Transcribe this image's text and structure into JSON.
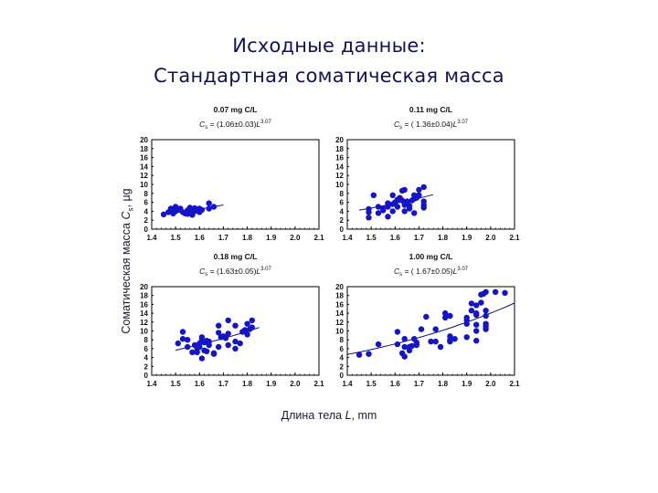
{
  "title_line1": "Исходные данные:",
  "title_line2": "Стандартная соматическая масса",
  "ylabel": "Соматическая масса Cs, µg",
  "ylabel_parts": {
    "prefix": "Соматическая масса ",
    "var": "C",
    "sub": "s",
    "suffix": ", µg"
  },
  "xlabel_parts": {
    "prefix": "Длина тела ",
    "var": "L",
    "suffix": ", mm"
  },
  "colors": {
    "marker": "#1414c8",
    "fit_line": "#10106e",
    "title": "#12125a",
    "axis": "#000000"
  },
  "chart_data": [
    {
      "type": "scatter",
      "title": "0.07 mg C/L",
      "equation": "Cs = (1.06±0.03)L^3.07",
      "eq_coef": "(1.06±0.03)",
      "exponent": "3.07",
      "xlabel": "Длина тела L, mm",
      "ylabel": "Соматическая масса Cs, µg",
      "xlim": [
        1.4,
        2.1
      ],
      "ylim": [
        0,
        20
      ],
      "xticks": [
        "1.4",
        "1.5",
        "1.6",
        "1.7",
        "1.8",
        "1.9",
        "2.0",
        "2.1"
      ],
      "yticks": [
        "0",
        "2",
        "4",
        "6",
        "8",
        "10",
        "12",
        "14",
        "16",
        "18",
        "20"
      ],
      "fit": {
        "a": 1.06,
        "b": 3.07,
        "x_range": [
          1.47,
          1.7
        ]
      },
      "points": [
        [
          1.45,
          3.3
        ],
        [
          1.47,
          3.8
        ],
        [
          1.48,
          4.2
        ],
        [
          1.48,
          4.6
        ],
        [
          1.49,
          3.5
        ],
        [
          1.49,
          4.3
        ],
        [
          1.5,
          5.0
        ],
        [
          1.5,
          4.0
        ],
        [
          1.51,
          4.4
        ],
        [
          1.52,
          4.6
        ],
        [
          1.53,
          3.8
        ],
        [
          1.54,
          3.5
        ],
        [
          1.55,
          3.4
        ],
        [
          1.55,
          4.2
        ],
        [
          1.56,
          4.8
        ],
        [
          1.56,
          3.6
        ],
        [
          1.57,
          4.4
        ],
        [
          1.57,
          3.2
        ],
        [
          1.58,
          4.0
        ],
        [
          1.58,
          4.7
        ],
        [
          1.59,
          4.2
        ],
        [
          1.6,
          4.6
        ],
        [
          1.6,
          3.8
        ],
        [
          1.61,
          4.3
        ],
        [
          1.64,
          5.8
        ],
        [
          1.64,
          4.6
        ],
        [
          1.66,
          5.0
        ]
      ]
    },
    {
      "type": "scatter",
      "title": "0.11 mg C/L",
      "equation": "Cs = (1.36±0.04)L^3.07",
      "eq_coef": "( 1.36±0.04)",
      "exponent": "3.07",
      "xlim": [
        1.4,
        2.1
      ],
      "ylim": [
        0,
        20
      ],
      "xticks": [
        "1.4",
        "1.5",
        "1.6",
        "1.7",
        "1.8",
        "1.9",
        "2.0",
        "2.1"
      ],
      "yticks": [
        "0",
        "2",
        "4",
        "6",
        "8",
        "10",
        "12",
        "14",
        "16",
        "18",
        "20"
      ],
      "fit": {
        "a": 1.36,
        "b": 3.07,
        "x_range": [
          1.45,
          1.76
        ]
      },
      "points": [
        [
          1.49,
          2.6
        ],
        [
          1.49,
          3.8
        ],
        [
          1.49,
          4.5
        ],
        [
          1.51,
          7.6
        ],
        [
          1.53,
          3.6
        ],
        [
          1.53,
          5.0
        ],
        [
          1.55,
          4.2
        ],
        [
          1.55,
          4.6
        ],
        [
          1.57,
          2.8
        ],
        [
          1.57,
          5.0
        ],
        [
          1.57,
          5.8
        ],
        [
          1.59,
          4.0
        ],
        [
          1.59,
          5.6
        ],
        [
          1.59,
          7.6
        ],
        [
          1.6,
          6.0
        ],
        [
          1.61,
          5.0
        ],
        [
          1.61,
          6.6
        ],
        [
          1.62,
          7.0
        ],
        [
          1.63,
          8.6
        ],
        [
          1.63,
          6.4
        ],
        [
          1.64,
          4.0
        ],
        [
          1.64,
          5.4
        ],
        [
          1.64,
          6.0
        ],
        [
          1.64,
          8.8
        ],
        [
          1.65,
          6.2
        ],
        [
          1.66,
          5.2
        ],
        [
          1.66,
          4.6
        ],
        [
          1.67,
          6.4
        ],
        [
          1.68,
          3.6
        ],
        [
          1.68,
          6.8
        ],
        [
          1.68,
          7.6
        ],
        [
          1.69,
          7.0
        ],
        [
          1.7,
          7.6
        ],
        [
          1.7,
          8.8
        ],
        [
          1.72,
          9.4
        ],
        [
          1.72,
          6.2
        ],
        [
          1.72,
          5.4
        ],
        [
          1.72,
          4.8
        ]
      ]
    },
    {
      "type": "scatter",
      "title": "0.18 mg C/L",
      "equation": "Cs = (1.63±0.05)L^3.07",
      "eq_coef": "(1.63±0.05)",
      "exponent": "3.07",
      "xlim": [
        1.4,
        2.1
      ],
      "ylim": [
        0,
        20
      ],
      "xticks": [
        "1.4",
        "1.5",
        "1.6",
        "1.7",
        "1.8",
        "1.9",
        "2.0",
        "2.1"
      ],
      "yticks": [
        "0",
        "2",
        "4",
        "6",
        "8",
        "10",
        "12",
        "14",
        "16",
        "18",
        "20"
      ],
      "fit": {
        "a": 1.63,
        "b": 3.07,
        "x_range": [
          1.5,
          1.85
        ]
      },
      "points": [
        [
          1.51,
          7.2
        ],
        [
          1.53,
          8.2
        ],
        [
          1.53,
          9.8
        ],
        [
          1.55,
          6.4
        ],
        [
          1.55,
          8.0
        ],
        [
          1.57,
          5.2
        ],
        [
          1.58,
          6.8
        ],
        [
          1.59,
          6.0
        ],
        [
          1.59,
          5.2
        ],
        [
          1.6,
          7.2
        ],
        [
          1.6,
          6.4
        ],
        [
          1.61,
          3.8
        ],
        [
          1.61,
          8.6
        ],
        [
          1.61,
          8.0
        ],
        [
          1.62,
          5.6
        ],
        [
          1.62,
          7.4
        ],
        [
          1.63,
          7.8
        ],
        [
          1.63,
          5.4
        ],
        [
          1.64,
          7.6
        ],
        [
          1.64,
          6.8
        ],
        [
          1.66,
          5.0
        ],
        [
          1.66,
          4.8
        ],
        [
          1.68,
          6.4
        ],
        [
          1.68,
          9.6
        ],
        [
          1.68,
          11.2
        ],
        [
          1.69,
          8.6
        ],
        [
          1.7,
          8.8
        ],
        [
          1.71,
          8.4
        ],
        [
          1.72,
          6.8
        ],
        [
          1.72,
          9.4
        ],
        [
          1.72,
          12.4
        ],
        [
          1.75,
          6.0
        ],
        [
          1.75,
          7.6
        ],
        [
          1.75,
          11.2
        ],
        [
          1.77,
          7.2
        ],
        [
          1.78,
          9.8
        ],
        [
          1.79,
          10.2
        ],
        [
          1.8,
          9.2
        ],
        [
          1.8,
          11.6
        ],
        [
          1.81,
          10.4
        ],
        [
          1.82,
          10.8
        ],
        [
          1.82,
          12.4
        ]
      ]
    },
    {
      "type": "scatter",
      "title": "1.00 mg C/L",
      "equation": "Cs = (1.67±0.05)L^3.07",
      "eq_coef": "( 1.67±0.05)",
      "exponent": "3.07",
      "xlim": [
        1.4,
        2.1
      ],
      "ylim": [
        0,
        20
      ],
      "xticks": [
        "1.4",
        "1.5",
        "1.6",
        "1.7",
        "1.8",
        "1.9",
        "2.0",
        "2.1"
      ],
      "yticks": [
        "0",
        "2",
        "4",
        "6",
        "8",
        "10",
        "12",
        "14",
        "16",
        "18",
        "20"
      ],
      "fit": {
        "a": 1.67,
        "b": 3.07,
        "x_range": [
          1.4,
          2.1
        ]
      },
      "points": [
        [
          1.45,
          4.6
        ],
        [
          1.49,
          4.8
        ],
        [
          1.53,
          7.0
        ],
        [
          1.61,
          9.8
        ],
        [
          1.61,
          7.0
        ],
        [
          1.63,
          5.0
        ],
        [
          1.64,
          8.2
        ],
        [
          1.64,
          6.4
        ],
        [
          1.64,
          4.2
        ],
        [
          1.66,
          6.4
        ],
        [
          1.66,
          5.6
        ],
        [
          1.67,
          6.6
        ],
        [
          1.68,
          8.2
        ],
        [
          1.69,
          6.8
        ],
        [
          1.69,
          7.4
        ],
        [
          1.71,
          10.4
        ],
        [
          1.73,
          13.2
        ],
        [
          1.75,
          7.6
        ],
        [
          1.77,
          10.4
        ],
        [
          1.77,
          7.6
        ],
        [
          1.79,
          6.4
        ],
        [
          1.81,
          14.0
        ],
        [
          1.81,
          13.0
        ],
        [
          1.83,
          13.4
        ],
        [
          1.83,
          8.8
        ],
        [
          1.83,
          8.0
        ],
        [
          1.83,
          7.6
        ],
        [
          1.85,
          8.2
        ],
        [
          1.9,
          8.6
        ],
        [
          1.9,
          11.6
        ],
        [
          1.9,
          12.4
        ],
        [
          1.9,
          13.0
        ],
        [
          1.92,
          16.2
        ],
        [
          1.92,
          14.6
        ],
        [
          1.94,
          15.8
        ],
        [
          1.94,
          14.0
        ],
        [
          1.94,
          13.6
        ],
        [
          1.94,
          11.4
        ],
        [
          1.94,
          10.0
        ],
        [
          1.94,
          7.8
        ],
        [
          1.96,
          16.4
        ],
        [
          1.96,
          18.2
        ],
        [
          1.97,
          18.4
        ],
        [
          1.98,
          18.8
        ],
        [
          1.98,
          14.6
        ],
        [
          1.98,
          13.4
        ],
        [
          1.98,
          11.6
        ],
        [
          1.98,
          11.0
        ],
        [
          1.98,
          10.4
        ],
        [
          2.02,
          18.8
        ],
        [
          2.06,
          18.6
        ]
      ]
    }
  ]
}
